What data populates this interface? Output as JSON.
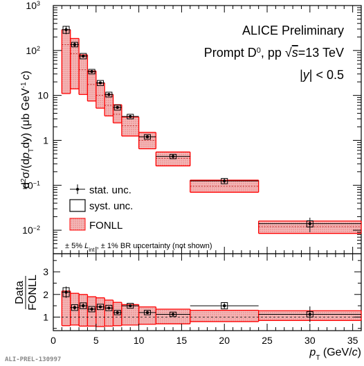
{
  "chart_data": [
    {
      "type": "scatter",
      "panel": "main",
      "title": "ALICE Preliminary",
      "subtitle_parts": {
        "pre": "Prompt D",
        "sup": "0",
        "mid": ", pp ",
        "sqrt": "√",
        "s": "s",
        "post": "=13 TeV"
      },
      "rapidity_parts": {
        "bar1": "|",
        "y": "y",
        "post": "| < 0.5"
      },
      "ylabel_parts": {
        "d": "d",
        "sup2": "2",
        "sigma": "σ/(d",
        "p": "p",
        "T": "T",
        "dy": "dy",
        "mu": ") (μb GeV",
        "supm1": "-1",
        "c": "c",
        "close": ")"
      },
      "yscale": "log",
      "ylim": [
        0.003,
        1000
      ],
      "xlim": [
        0,
        36
      ],
      "y_tick_labels": [
        {
          "v": 0.01,
          "base": "10",
          "exp": "−2"
        },
        {
          "v": 0.1,
          "base": "10",
          "exp": "−1"
        },
        {
          "v": 1,
          "base": "1",
          "exp": ""
        },
        {
          "v": 10,
          "base": "10",
          "exp": ""
        },
        {
          "v": 100,
          "base": "10",
          "exp": "2"
        },
        {
          "v": 1000,
          "base": "10",
          "exp": "3"
        }
      ],
      "legend_position": "bottom-left",
      "legend": {
        "stat": "stat. unc.",
        "syst": "syst. unc.",
        "fonll": "FONLL"
      },
      "note_parts": {
        "a": "± 5% ",
        "L": "L",
        "int": "int",
        "b": " , ± 1% BR uncertainty (not shown)"
      },
      "bins": [
        [
          1,
          2
        ],
        [
          2,
          3
        ],
        [
          3,
          4
        ],
        [
          4,
          5
        ],
        [
          5,
          6
        ],
        [
          6,
          7
        ],
        [
          7,
          8
        ],
        [
          8,
          10
        ],
        [
          10,
          12
        ],
        [
          12,
          16
        ],
        [
          16,
          24
        ],
        [
          24,
          36
        ]
      ],
      "series": [
        {
          "name": "stat. unc.",
          "x": [
            1.5,
            2.5,
            3.5,
            4.5,
            5.5,
            6.5,
            7.5,
            9,
            11,
            14,
            20,
            30
          ],
          "y": [
            290,
            135,
            75,
            34,
            19,
            10.5,
            5.4,
            3.4,
            1.2,
            0.44,
            0.125,
            0.014
          ],
          "stat_err": [
            60,
            15,
            6,
            2,
            1,
            0.5,
            0.3,
            0.2,
            0.07,
            0.03,
            0.015,
            0.005
          ],
          "syst_low": [
            240,
            120,
            65,
            30,
            16.5,
            9.2,
            4.7,
            3.0,
            1.06,
            0.39,
            0.108,
            0.0118
          ],
          "syst_high": [
            345,
            152,
            86,
            38,
            21.5,
            11.8,
            6.1,
            3.8,
            1.34,
            0.49,
            0.142,
            0.0162
          ]
        },
        {
          "name": "FONLL",
          "fonll_low": [
            11,
            14,
            10.5,
            7.5,
            5.2,
            3.5,
            2.45,
            1.25,
            0.65,
            0.27,
            0.07,
            0.0085
          ],
          "fonll_high": [
            290,
            185,
            80,
            35,
            19,
            10.5,
            6.2,
            3.3,
            1.5,
            0.55,
            0.13,
            0.016
          ],
          "fonll_central": [
            135,
            85,
            37,
            17.5,
            10,
            6,
            3.8,
            2.1,
            1.0,
            0.4,
            0.095,
            0.012
          ]
        }
      ],
      "footer": "ALI-PREL-130997"
    },
    {
      "type": "scatter",
      "panel": "ratio",
      "ylabel_top": "Data",
      "ylabel_bottom": "FONLL",
      "ylim": [
        0.4,
        3.8
      ],
      "xlim": [
        0,
        36
      ],
      "y_ticks": [
        1,
        2,
        3
      ],
      "x_ticks": [
        0,
        5,
        10,
        15,
        20,
        25,
        30,
        35
      ],
      "xlabel_parts": {
        "p": "p",
        "T": "T",
        "unit": " (GeV/",
        "c": "c",
        "close": ")"
      },
      "bins": [
        [
          1,
          2
        ],
        [
          2,
          3
        ],
        [
          3,
          4
        ],
        [
          4,
          5
        ],
        [
          5,
          6
        ],
        [
          6,
          7
        ],
        [
          7,
          8
        ],
        [
          8,
          10
        ],
        [
          10,
          12
        ],
        [
          12,
          16
        ],
        [
          16,
          24
        ],
        [
          24,
          36
        ]
      ],
      "ratio": [
        2.1,
        1.42,
        1.5,
        1.35,
        1.45,
        1.4,
        1.2,
        1.5,
        1.2,
        1.12,
        1.5,
        1.12
      ],
      "ratio_stat_err": [
        0.25,
        0.1,
        0.1,
        0.08,
        0.06,
        0.06,
        0.06,
        0.05,
        0.06,
        0.06,
        0.12,
        0.35
      ],
      "ratio_syst_err": [
        0.2,
        0.13,
        0.13,
        0.12,
        0.12,
        0.12,
        0.1,
        0.11,
        0.1,
        0.1,
        0.14,
        0.12
      ],
      "fonll_band_low": [
        0.62,
        0.65,
        0.6,
        0.6,
        0.58,
        0.6,
        0.62,
        0.65,
        0.68,
        0.7,
        0.8,
        0.85
      ],
      "fonll_band_high": [
        2.15,
        2.05,
        2.0,
        1.9,
        1.85,
        1.75,
        1.65,
        1.55,
        1.45,
        1.35,
        1.3,
        1.28
      ]
    }
  ]
}
